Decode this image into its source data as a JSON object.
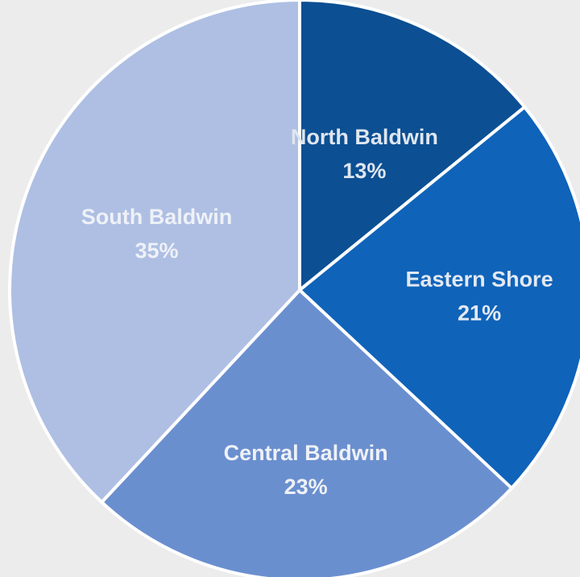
{
  "chart_data": {
    "type": "pie",
    "slices": [
      {
        "label": "North Baldwin",
        "value": 13,
        "display": "13%",
        "color": "#0c4f93",
        "label_color": "#dfe6ef"
      },
      {
        "label": "Eastern Shore",
        "value": 21,
        "display": "21%",
        "color": "#0f63b9",
        "label_color": "#e3e9f1"
      },
      {
        "label": "Central Baldwin",
        "value": 23,
        "display": "23%",
        "color": "#6a8fcf",
        "label_color": "#eef1f6"
      },
      {
        "label": "South Baldwin",
        "value": 35,
        "display": "35%",
        "color": "#aebfe3",
        "label_color": "#eef1f7"
      }
    ],
    "start_angle_deg": 0,
    "direction": "clockwise",
    "legend": "none"
  },
  "colors": {
    "background": "#ececec",
    "slice_border": "#ffffff"
  }
}
